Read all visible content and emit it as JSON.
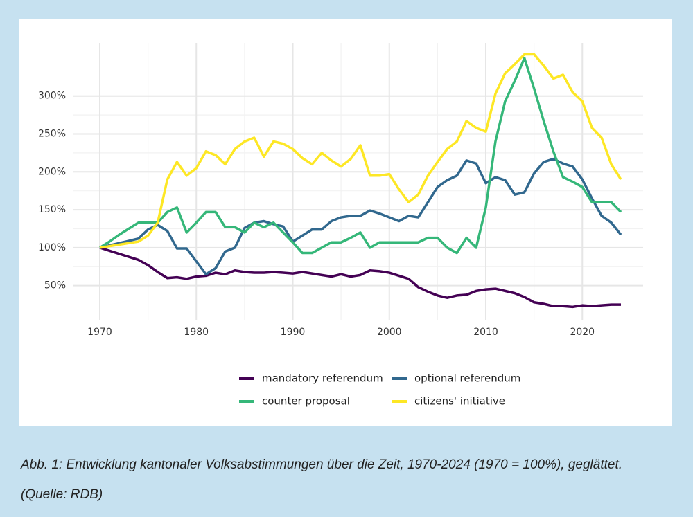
{
  "chart_data": {
    "type": "line",
    "caption": "Abb. 1: Entwicklung kantonaler Volksabstimmungen über die Zeit, 1970-2024 (1970 = 100%), geglättet. (Quelle: RDB)",
    "x": [
      1970,
      1971,
      1972,
      1973,
      1974,
      1975,
      1976,
      1977,
      1978,
      1979,
      1980,
      1981,
      1982,
      1983,
      1984,
      1985,
      1986,
      1987,
      1988,
      1989,
      1990,
      1991,
      1992,
      1993,
      1994,
      1995,
      1996,
      1997,
      1998,
      1999,
      2000,
      2001,
      2002,
      2003,
      2004,
      2005,
      2006,
      2007,
      2008,
      2009,
      2010,
      2011,
      2012,
      2013,
      2014,
      2015,
      2016,
      2017,
      2018,
      2019,
      2020,
      2021,
      2022,
      2023,
      2024
    ],
    "series": [
      {
        "name": "mandatory referendum",
        "color": "#440154",
        "values": [
          100,
          96,
          92,
          88,
          84,
          77,
          68,
          60,
          61,
          59,
          62,
          63,
          67,
          65,
          70,
          68,
          67,
          67,
          68,
          67,
          66,
          68,
          66,
          64,
          62,
          65,
          62,
          64,
          70,
          69,
          67,
          63,
          59,
          48,
          42,
          37,
          34,
          37,
          38,
          43,
          45,
          46,
          43,
          40,
          35,
          28,
          26,
          23,
          23,
          22,
          24,
          23,
          24,
          25,
          25
        ]
      },
      {
        "name": "optional referendum",
        "color": "#31688e",
        "values": [
          100,
          103,
          106,
          109,
          112,
          124,
          130,
          122,
          99,
          99,
          82,
          65,
          73,
          95,
          100,
          126,
          133,
          135,
          131,
          128,
          108,
          116,
          124,
          124,
          135,
          140,
          142,
          142,
          149,
          145,
          140,
          135,
          142,
          140,
          160,
          180,
          189,
          195,
          215,
          211,
          185,
          193,
          189,
          170,
          173,
          198,
          213,
          217,
          211,
          207,
          190,
          165,
          142,
          133,
          117
        ]
      },
      {
        "name": "counter proposal",
        "color": "#35b779",
        "values": [
          100,
          108,
          117,
          125,
          133,
          133,
          133,
          147,
          153,
          120,
          133,
          147,
          147,
          127,
          127,
          120,
          133,
          127,
          133,
          120,
          107,
          93,
          93,
          100,
          107,
          107,
          113,
          120,
          100,
          107,
          107,
          107,
          107,
          107,
          113,
          113,
          100,
          93,
          113,
          100,
          153,
          240,
          293,
          320,
          350,
          310,
          267,
          227,
          193,
          187,
          180,
          160,
          160,
          160,
          147
        ]
      },
      {
        "name": "citizens' initiative",
        "color": "#fde725",
        "values": [
          100,
          102,
          104,
          106,
          108,
          116,
          133,
          190,
          213,
          195,
          205,
          227,
          222,
          210,
          230,
          240,
          245,
          220,
          240,
          237,
          230,
          218,
          210,
          225,
          215,
          207,
          217,
          235,
          195,
          195,
          197,
          177,
          160,
          170,
          195,
          213,
          230,
          240,
          267,
          258,
          253,
          303,
          330,
          342,
          355,
          355,
          340,
          323,
          328,
          305,
          293,
          258,
          245,
          210,
          190
        ]
      }
    ],
    "xlim": [
      1967.2,
      2026.3
    ],
    "xticks": [
      1970,
      1980,
      1990,
      2000,
      2010,
      2020
    ],
    "ylim": [
      5,
      370
    ],
    "yticks": [
      {
        "value": 50,
        "label": "50%"
      },
      {
        "value": 100,
        "label": "100%"
      },
      {
        "value": 150,
        "label": "150%"
      },
      {
        "value": 200,
        "label": "200%"
      },
      {
        "value": 250,
        "label": "250%"
      },
      {
        "value": 300,
        "label": "300%"
      }
    ],
    "grid": true,
    "legend": "bottom"
  }
}
